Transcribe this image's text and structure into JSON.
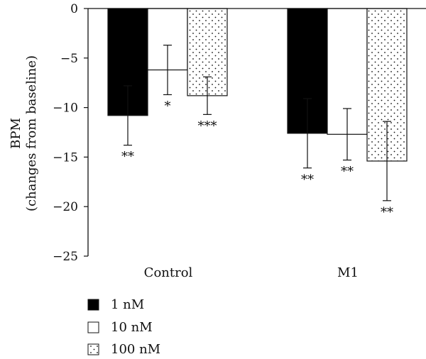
{
  "chart_data": {
    "type": "bar",
    "categories": [
      "Control",
      "M1"
    ],
    "ylabel_line1": "BPM",
    "ylabel_line2": "(changes from baseline)",
    "ylim": [
      -25,
      0
    ],
    "yticks": [
      0,
      -5,
      -10,
      -15,
      -20,
      -25
    ],
    "ytick_labels": [
      "0",
      "−5",
      "−10",
      "−15",
      "−20",
      "−25"
    ],
    "grid": false,
    "legend_position": "bottom-left",
    "series": [
      {
        "name": "1 nM",
        "fill": "black",
        "values": [
          -10.8,
          -12.6
        ],
        "error": [
          3.0,
          3.5
        ],
        "significance": [
          "**",
          "**"
        ]
      },
      {
        "name": "10 nM",
        "fill": "white",
        "values": [
          -6.2,
          -12.7
        ],
        "error": [
          2.5,
          2.6
        ],
        "significance": [
          "*",
          "**"
        ]
      },
      {
        "name": "100 nM",
        "fill": "dotted",
        "values": [
          -8.8,
          -15.4
        ],
        "error": [
          1.9,
          4.0
        ],
        "significance": [
          "***",
          "**"
        ]
      }
    ]
  },
  "colors": {
    "dark_bar": "#000000",
    "light_bar": "#ffffff",
    "line": "#111111"
  }
}
